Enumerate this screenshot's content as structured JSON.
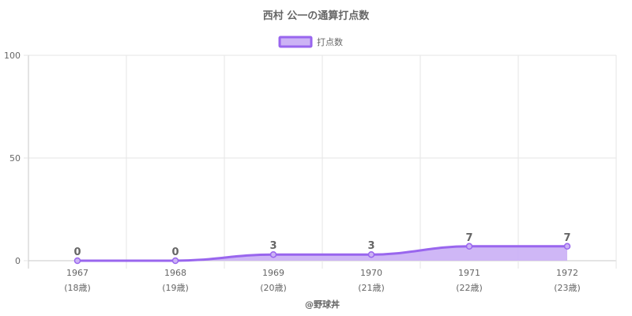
{
  "colors": {
    "line": "#9966ee",
    "fill": "#ccb3f5",
    "grid": "#e6e6e6",
    "axis": "#c8c8c8",
    "text": "#666666"
  },
  "footer": {
    "credit": "@野球丼"
  },
  "chart_data": {
    "type": "area",
    "title": "西村 公一の通算打点数",
    "legend": {
      "position": "top",
      "label": "打点数"
    },
    "categories": [
      "1967",
      "1968",
      "1969",
      "1970",
      "1971",
      "1972"
    ],
    "sublabels": [
      "(18歳)",
      "(19歳)",
      "(20歳)",
      "(21歳)",
      "(22歳)",
      "(23歳)"
    ],
    "series": [
      {
        "name": "打点数",
        "values": [
          0,
          0,
          3,
          3,
          7,
          7
        ]
      }
    ],
    "ylim": [
      0,
      100
    ],
    "yticks": [
      0,
      50,
      100
    ],
    "grid": true,
    "data_labels": true
  }
}
